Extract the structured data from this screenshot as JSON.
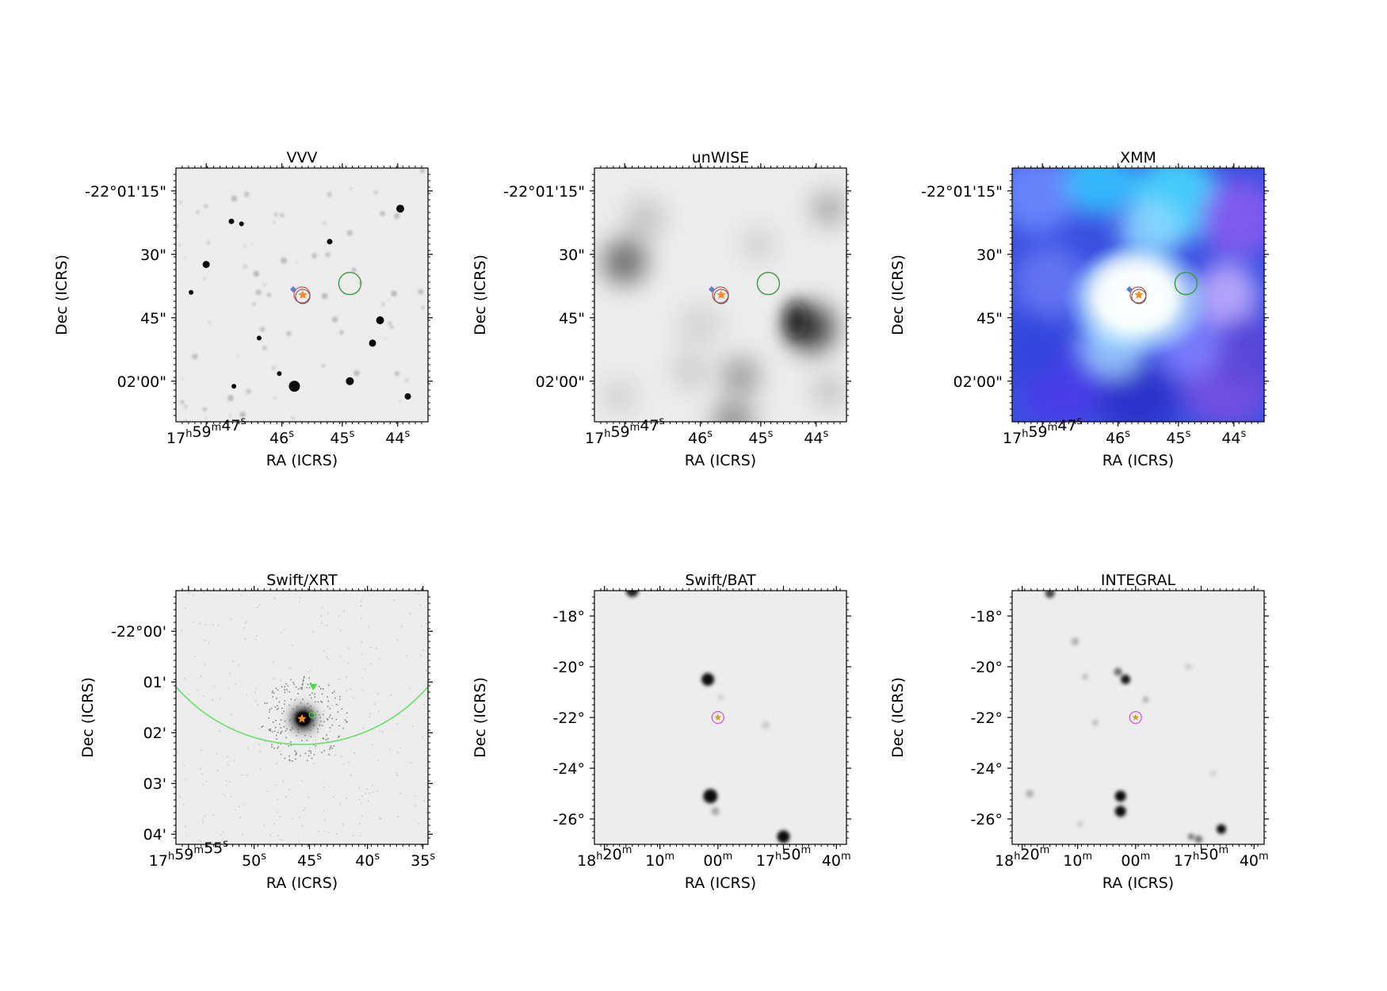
{
  "panels": [
    {
      "id": "vvv",
      "title": "VVV",
      "image_style": "gray",
      "xlabel": "RA (ICRS)",
      "ylabel": "Dec (ICRS)",
      "xticks": [
        "17h59m47s",
        "46s",
        "45s",
        "44s"
      ],
      "yticks": [
        "-22°01'15\"",
        "30\"",
        "45\"",
        "02'00\""
      ]
    },
    {
      "id": "unwise",
      "title": "unWISE",
      "image_style": "gray-blurred",
      "xlabel": "RA (ICRS)",
      "ylabel": "Dec (ICRS)",
      "xticks": [
        "17h59m47s",
        "46s",
        "45s",
        "44s"
      ],
      "yticks": [
        "-22°01'15\"",
        "30\"",
        "45\"",
        "02'00\""
      ]
    },
    {
      "id": "xmm",
      "title": "XMM",
      "image_style": "rgb",
      "xlabel": "RA (ICRS)",
      "ylabel": "Dec (ICRS)",
      "xticks": [
        "17h59m47s",
        "46s",
        "45s",
        "44s"
      ],
      "yticks": [
        "-22°01'15\"",
        "30\"",
        "45\"",
        "02'00\""
      ]
    },
    {
      "id": "swift-xrt",
      "title": "Swift/XRT",
      "image_style": "gray",
      "xlabel": "RA (ICRS)",
      "ylabel": "Dec (ICRS)",
      "xticks": [
        "17h59m55s",
        "50s",
        "45s",
        "40s",
        "35s"
      ],
      "yticks": [
        "-22°00'",
        "01'",
        "02'",
        "03'",
        "04'"
      ]
    },
    {
      "id": "swift-bat",
      "title": "Swift/BAT",
      "image_style": "gray",
      "xlabel": "RA (ICRS)",
      "ylabel": "Dec (ICRS)",
      "xticks": [
        "18h20m",
        "10m",
        "00m",
        "17h50m",
        "40m"
      ],
      "yticks": [
        "-18°",
        "-20°",
        "-22°",
        "-24°",
        "-26°"
      ]
    },
    {
      "id": "integral",
      "title": "INTEGRAL",
      "image_style": "gray",
      "xlabel": "RA (ICRS)",
      "ylabel": "Dec (ICRS)",
      "xticks": [
        "18h20m",
        "10m",
        "00m",
        "17h50m",
        "40m"
      ],
      "yticks": [
        "-18°",
        "-20°",
        "-22°",
        "-24°",
        "-26°"
      ]
    }
  ],
  "colors": {
    "marker_star": "#ff8c1a",
    "marker_diamond": "#5a7fd6",
    "circle_green": "#3a9a3a",
    "circle_red": "#d94a4a",
    "circle_magenta": "#d45ad4",
    "xrt_error_circle": "#66e066",
    "xrt_triangle": "#44dd44"
  }
}
